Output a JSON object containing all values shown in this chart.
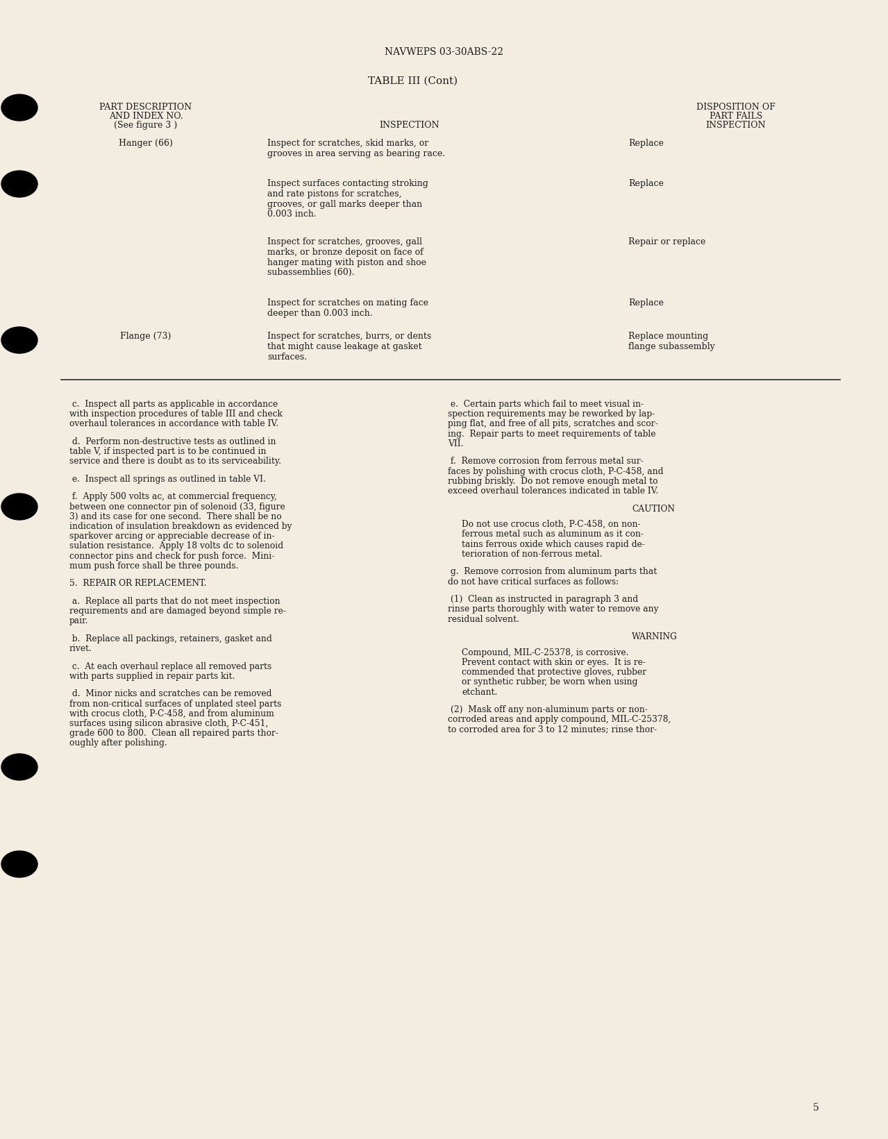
{
  "bg_color": "#f2ede0",
  "text_color": "#1c1c1c",
  "header_text": "NAVWEPS 03-30ABS-22",
  "table_title": "TABLE III (Cont)",
  "page_number": "5"
}
